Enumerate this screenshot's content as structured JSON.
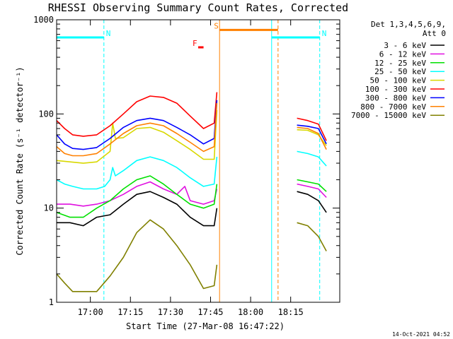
{
  "chart_data": {
    "type": "line",
    "title": "RHESSI Observing Summary Count Rates, Corrected",
    "xlabel": "Start Time (27-Mar-08 16:47:22)",
    "ylabel": "Corrected Count Rate (s⁻¹ detector⁻¹)",
    "y_scale": "log",
    "ylim": [
      1,
      1000
    ],
    "xlim_minutes_after_start": [
      0,
      106
    ],
    "x_ticks": [
      {
        "label": "17:00",
        "minutes": 12.63
      },
      {
        "label": "17:15",
        "minutes": 27.63
      },
      {
        "label": "17:30",
        "minutes": 42.63
      },
      {
        "label": "17:45",
        "minutes": 57.63
      },
      {
        "label": "18:00",
        "minutes": 72.63
      },
      {
        "label": "18:15",
        "minutes": 87.63
      }
    ],
    "y_ticks": [
      {
        "label": "1",
        "value": 1
      },
      {
        "label": "10",
        "value": 10
      },
      {
        "label": "100",
        "value": 100
      },
      {
        "label": "1000",
        "value": 1000
      }
    ],
    "legend_header": [
      "Det 1,3,4,5,6,9,",
      "Att 0"
    ],
    "legend_placement": "right",
    "grid": false,
    "series": [
      {
        "name": "3 - 6 keV",
        "color": "#000000",
        "seg1": [
          [
            0,
            7
          ],
          [
            5,
            7
          ],
          [
            10,
            6.5
          ],
          [
            15,
            8
          ],
          [
            20,
            8.5
          ],
          [
            25,
            11
          ],
          [
            30,
            14
          ],
          [
            35,
            15
          ],
          [
            40,
            13
          ],
          [
            45,
            11
          ],
          [
            50,
            8
          ],
          [
            55,
            6.5
          ],
          [
            59,
            6.5
          ],
          [
            60,
            10
          ]
        ],
        "seg2": [
          [
            90,
            15
          ],
          [
            94,
            14
          ],
          [
            98,
            12
          ],
          [
            101,
            9
          ]
        ]
      },
      {
        "name": "6 - 12 keV",
        "color": "#e010e0",
        "seg1": [
          [
            0,
            11
          ],
          [
            5,
            11
          ],
          [
            10,
            10.5
          ],
          [
            15,
            11
          ],
          [
            20,
            12
          ],
          [
            25,
            14
          ],
          [
            30,
            17
          ],
          [
            35,
            19
          ],
          [
            40,
            16
          ],
          [
            45,
            14
          ],
          [
            48,
            17
          ],
          [
            50,
            12
          ],
          [
            55,
            11
          ],
          [
            59,
            12
          ],
          [
            60,
            16
          ]
        ],
        "seg2": [
          [
            90,
            18
          ],
          [
            94,
            17
          ],
          [
            98,
            16
          ],
          [
            101,
            13
          ]
        ]
      },
      {
        "name": "12 - 25 keV",
        "color": "#00e000",
        "seg1": [
          [
            0,
            9
          ],
          [
            5,
            8
          ],
          [
            10,
            8
          ],
          [
            15,
            10
          ],
          [
            20,
            12
          ],
          [
            25,
            16
          ],
          [
            30,
            20
          ],
          [
            35,
            22
          ],
          [
            40,
            18
          ],
          [
            45,
            14
          ],
          [
            50,
            11
          ],
          [
            55,
            10
          ],
          [
            59,
            11
          ],
          [
            60,
            18
          ]
        ],
        "seg2": [
          [
            90,
            20
          ],
          [
            94,
            19
          ],
          [
            98,
            18
          ],
          [
            101,
            15
          ]
        ]
      },
      {
        "name": "25 - 50 keV",
        "color": "#00ffff",
        "seg1": [
          [
            0,
            20
          ],
          [
            3,
            18
          ],
          [
            6,
            17
          ],
          [
            10,
            16
          ],
          [
            15,
            16
          ],
          [
            18,
            17
          ],
          [
            20,
            20
          ],
          [
            21,
            27
          ],
          [
            22,
            22
          ],
          [
            25,
            25
          ],
          [
            30,
            32
          ],
          [
            35,
            35
          ],
          [
            40,
            32
          ],
          [
            45,
            27
          ],
          [
            50,
            21
          ],
          [
            55,
            17
          ],
          [
            59,
            18
          ],
          [
            60,
            35
          ]
        ],
        "seg2": [
          [
            90,
            40
          ],
          [
            94,
            38
          ],
          [
            98,
            35
          ],
          [
            101,
            28
          ]
        ]
      },
      {
        "name": "50 - 100 keV",
        "color": "#d8d800",
        "seg1": [
          [
            0,
            32
          ],
          [
            5,
            31
          ],
          [
            10,
            30
          ],
          [
            15,
            31
          ],
          [
            20,
            40
          ],
          [
            21,
            80
          ],
          [
            22,
            55
          ],
          [
            25,
            56
          ],
          [
            30,
            70
          ],
          [
            35,
            72
          ],
          [
            40,
            64
          ],
          [
            45,
            52
          ],
          [
            50,
            42
          ],
          [
            55,
            33
          ],
          [
            59,
            33
          ],
          [
            60,
            110
          ]
        ],
        "seg2": [
          [
            90,
            68
          ],
          [
            94,
            67
          ],
          [
            98,
            60
          ],
          [
            101,
            46
          ]
        ]
      },
      {
        "name": "100 - 300 keV",
        "color": "#ff0000",
        "seg1": [
          [
            0,
            85
          ],
          [
            3,
            70
          ],
          [
            6,
            60
          ],
          [
            10,
            58
          ],
          [
            15,
            60
          ],
          [
            20,
            75
          ],
          [
            25,
            100
          ],
          [
            30,
            135
          ],
          [
            35,
            155
          ],
          [
            40,
            150
          ],
          [
            45,
            130
          ],
          [
            50,
            95
          ],
          [
            55,
            70
          ],
          [
            59,
            80
          ],
          [
            60,
            170
          ]
        ],
        "seg2": [
          [
            90,
            90
          ],
          [
            94,
            85
          ],
          [
            98,
            78
          ],
          [
            101,
            52
          ]
        ]
      },
      {
        "name": "300 - 800 keV",
        "color": "#0000ff",
        "seg1": [
          [
            0,
            60
          ],
          [
            3,
            48
          ],
          [
            6,
            43
          ],
          [
            10,
            42
          ],
          [
            15,
            44
          ],
          [
            20,
            55
          ],
          [
            25,
            72
          ],
          [
            30,
            85
          ],
          [
            35,
            90
          ],
          [
            40,
            85
          ],
          [
            45,
            72
          ],
          [
            50,
            60
          ],
          [
            55,
            48
          ],
          [
            59,
            55
          ],
          [
            60,
            140
          ]
        ],
        "seg2": [
          [
            90,
            76
          ],
          [
            94,
            74
          ],
          [
            98,
            70
          ],
          [
            101,
            48
          ]
        ]
      },
      {
        "name": "800 - 7000 keV",
        "color": "#ff8000",
        "seg1": [
          [
            0,
            45
          ],
          [
            3,
            38
          ],
          [
            6,
            36
          ],
          [
            10,
            36
          ],
          [
            15,
            38
          ],
          [
            20,
            48
          ],
          [
            25,
            62
          ],
          [
            30,
            75
          ],
          [
            35,
            80
          ],
          [
            40,
            75
          ],
          [
            45,
            62
          ],
          [
            50,
            50
          ],
          [
            55,
            40
          ],
          [
            59,
            45
          ],
          [
            60,
            130
          ]
        ],
        "seg2": [
          [
            90,
            72
          ],
          [
            94,
            70
          ],
          [
            98,
            62
          ],
          [
            101,
            42
          ]
        ]
      },
      {
        "name": "7000 - 15000 keV",
        "color": "#808000",
        "seg1": [
          [
            0,
            2
          ],
          [
            3,
            1.6
          ],
          [
            6,
            1.3
          ],
          [
            10,
            1.3
          ],
          [
            15,
            1.3
          ],
          [
            20,
            1.9
          ],
          [
            25,
            3
          ],
          [
            30,
            5.5
          ],
          [
            35,
            7.5
          ],
          [
            40,
            6
          ],
          [
            45,
            4
          ],
          [
            50,
            2.5
          ],
          [
            55,
            1.4
          ],
          [
            59,
            1.5
          ],
          [
            60,
            2.5
          ]
        ],
        "seg2": [
          [
            90,
            7
          ],
          [
            94,
            6.5
          ],
          [
            98,
            5
          ],
          [
            101,
            3.5
          ]
        ]
      }
    ],
    "annotations": [
      {
        "label": "N",
        "color": "#00ffff",
        "line_start_min": 0,
        "line_end_min": 17.7,
        "y_value": 650
      },
      {
        "label": "N",
        "color": "#00ffff",
        "line_start_min": 80.5,
        "line_end_min": 98.5,
        "y_value": 650
      },
      {
        "label": "S",
        "color": "#ff8000",
        "line_start_min": 61.0,
        "line_end_min": 82.9,
        "y_value": 780
      },
      {
        "label": "F",
        "color": "#ff0000",
        "line_start_min": 53.0,
        "line_end_min": 55.0,
        "y_value": 510
      }
    ],
    "vertical_markers": [
      {
        "minutes": 17.7,
        "color": "#00ffff",
        "style": "dashed"
      },
      {
        "minutes": 61.0,
        "color": "#ff8000",
        "style": "solid"
      },
      {
        "minutes": 80.5,
        "color": "#00ffff",
        "style": "solid"
      },
      {
        "minutes": 82.9,
        "color": "#ff8000",
        "style": "dashed"
      },
      {
        "minutes": 98.5,
        "color": "#00ffff",
        "style": "dashed"
      }
    ],
    "footer_date": "14-Oct-2021 04:52"
  }
}
